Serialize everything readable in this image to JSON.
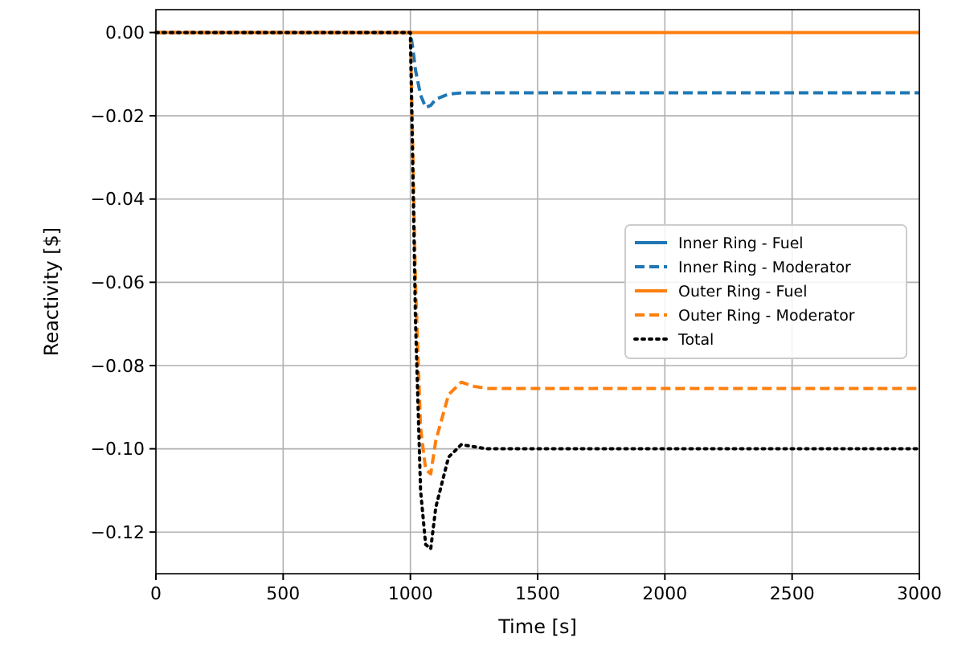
{
  "chart_data": {
    "type": "line",
    "xlabel": "Time [s]",
    "ylabel": "Reactivity [$]",
    "x": [
      0,
      1000,
      1010,
      1020,
      1040,
      1060,
      1080,
      1100,
      1150,
      1200,
      1250,
      1300,
      1500,
      2000,
      3000
    ],
    "series": [
      {
        "name": "Inner Ring - Fuel",
        "color": "#1f77b4",
        "line_style": "solid",
        "values": [
          null,
          null,
          null,
          null,
          null,
          null,
          null,
          null,
          null,
          null,
          null,
          null,
          null,
          null,
          null
        ]
      },
      {
        "name": "Inner Ring - Moderator",
        "color": "#1f77b4",
        "line_style": "dashed",
        "values": [
          0,
          0,
          -0.004,
          -0.009,
          -0.015,
          -0.018,
          -0.0175,
          -0.016,
          -0.0148,
          -0.0145,
          -0.0145,
          -0.0145,
          -0.0145,
          -0.0145,
          -0.0145
        ]
      },
      {
        "name": "Outer Ring - Fuel",
        "color": "#ff7f0e",
        "line_style": "solid",
        "values": [
          0,
          0,
          0,
          0,
          0,
          0,
          0,
          0,
          0,
          0,
          0,
          0,
          0,
          0,
          0
        ]
      },
      {
        "name": "Outer Ring - Moderator",
        "color": "#ff7f0e",
        "line_style": "dashed",
        "values": [
          0,
          0,
          -0.03,
          -0.06,
          -0.095,
          -0.105,
          -0.106,
          -0.098,
          -0.087,
          -0.084,
          -0.085,
          -0.0855,
          -0.0855,
          -0.0855,
          -0.0855
        ]
      },
      {
        "name": "Total",
        "color": "#000000",
        "line_style": "dotted",
        "values": [
          0,
          0,
          -0.034,
          -0.069,
          -0.11,
          -0.123,
          -0.124,
          -0.114,
          -0.102,
          -0.099,
          -0.0995,
          -0.1,
          -0.1,
          -0.1,
          -0.1
        ]
      }
    ],
    "xlim": [
      0,
      3000
    ],
    "xticks": [
      0,
      500,
      1000,
      1500,
      2000,
      2500,
      3000
    ],
    "ylim": [
      -0.13,
      0.0055
    ],
    "yticks": [
      {
        "value": 0,
        "label": "0.00"
      },
      {
        "value": -0.02,
        "label": "−0.02"
      },
      {
        "value": -0.04,
        "label": "−0.04"
      },
      {
        "value": -0.06,
        "label": "−0.06"
      },
      {
        "value": -0.08,
        "label": "−0.08"
      },
      {
        "value": -0.1,
        "label": "−0.10"
      },
      {
        "value": -0.12,
        "label": "−0.12"
      }
    ],
    "grid": true,
    "legend": "right"
  }
}
